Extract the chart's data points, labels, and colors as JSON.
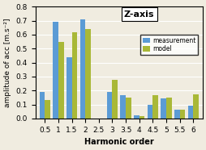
{
  "categories": [
    0.5,
    1.0,
    1.5,
    2.0,
    2.5,
    3.0,
    3.5,
    4.0,
    4.5,
    5.0,
    5.5,
    6.0
  ],
  "measurement": [
    0.19,
    0.69,
    0.44,
    0.71,
    0.0,
    0.19,
    0.165,
    0.02,
    0.1,
    0.145,
    0.065,
    0.09
  ],
  "model": [
    0.13,
    0.55,
    0.62,
    0.64,
    0.0,
    0.275,
    0.148,
    0.015,
    0.165,
    0.148,
    0.062,
    0.175
  ],
  "color_measurement": "#5b9bd5",
  "color_model": "#a9b837",
  "xlabel": "Harmonic order",
  "ylabel": "amplitude of acc [m.s⁻²]",
  "ylim": [
    0,
    0.8
  ],
  "yticks": [
    0.0,
    0.1,
    0.2,
    0.3,
    0.4,
    0.5,
    0.6,
    0.7,
    0.8
  ],
  "title": "Z-axis",
  "bar_width": 0.2,
  "title_fontsize": 8,
  "axis_label_fontsize": 7,
  "tick_fontsize": 6.5,
  "legend_labels": [
    "measurement",
    "model"
  ],
  "background_color": "#f0ece0"
}
